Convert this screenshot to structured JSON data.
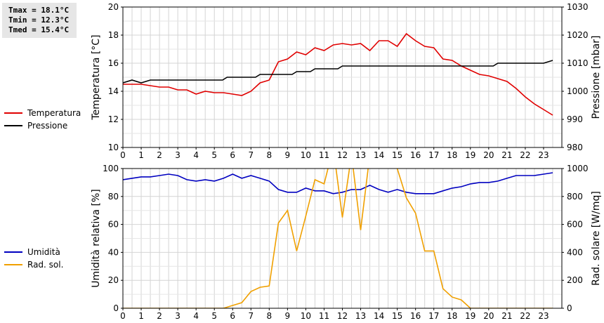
{
  "stats": {
    "tmax": "Tmax = 18.1°C",
    "tmin": "Tmin = 12.3°C",
    "tmed": "Tmed = 15.4°C"
  },
  "legend_top": [
    {
      "label": "Temperatura",
      "color": "#e00000"
    },
    {
      "label": "Pressione",
      "color": "#000000"
    }
  ],
  "legend_bottom": [
    {
      "label": "Umidità",
      "color": "#0000c0"
    },
    {
      "label": "Rad. sol.",
      "color": "#f0a000"
    }
  ],
  "chart_data": [
    {
      "type": "line",
      "xlim": [
        0,
        24
      ],
      "xticks": [
        0,
        1,
        2,
        3,
        4,
        5,
        6,
        7,
        8,
        9,
        10,
        11,
        12,
        13,
        14,
        15,
        16,
        17,
        18,
        19,
        20,
        21,
        22,
        23
      ],
      "ylabel": "Temperatura [°C]",
      "ylim": [
        10,
        20
      ],
      "yticks": [
        10,
        12,
        14,
        16,
        18,
        20
      ],
      "y2label": "Pressione [mbar]",
      "y2lim": [
        980,
        1030
      ],
      "y2ticks": [
        980,
        990,
        1000,
        1010,
        1020,
        1030
      ],
      "grid": true,
      "series": [
        {
          "name": "Temperatura",
          "color": "#e00000",
          "axis": "left",
          "x": [
            0,
            0.5,
            1,
            1.5,
            2,
            2.5,
            3,
            3.5,
            4,
            4.5,
            5,
            5.5,
            6,
            6.5,
            7,
            7.5,
            8,
            8.5,
            9,
            9.5,
            10,
            10.5,
            11,
            11.5,
            12,
            12.5,
            13,
            13.5,
            14,
            14.5,
            15,
            15.5,
            16,
            16.5,
            17,
            17.5,
            18,
            18.5,
            19,
            19.5,
            20,
            20.5,
            21,
            21.5,
            22,
            22.5,
            23,
            23.5
          ],
          "y": [
            14.5,
            14.5,
            14.5,
            14.4,
            14.3,
            14.3,
            14.1,
            14.1,
            13.8,
            14.0,
            13.9,
            13.9,
            13.8,
            13.7,
            14.0,
            14.6,
            14.8,
            16.1,
            16.3,
            16.8,
            16.6,
            17.1,
            16.9,
            17.3,
            17.4,
            17.3,
            17.4,
            16.9,
            17.6,
            17.6,
            17.2,
            18.1,
            17.6,
            17.2,
            17.1,
            16.3,
            16.2,
            15.8,
            15.5,
            15.2,
            15.1,
            14.9,
            14.7,
            14.2,
            13.6,
            13.1,
            12.7,
            12.3
          ]
        },
        {
          "name": "Pressione",
          "color": "#000000",
          "axis": "right",
          "x": [
            0,
            0.5,
            1,
            1.5,
            23,
            23.5
          ],
          "y": [
            1003.0,
            1004.0,
            1003.0,
            1004.0,
            1010.0,
            1011.0
          ],
          "steps": [
            [
              1.5,
              1004.0
            ],
            [
              5.7,
              1005.0
            ],
            [
              7.5,
              1006.0
            ],
            [
              9.5,
              1007.0
            ],
            [
              10.5,
              1008.0
            ],
            [
              12,
              1009.0
            ],
            [
              20.5,
              1010.0
            ]
          ]
        }
      ]
    },
    {
      "type": "line",
      "xlim": [
        0,
        24
      ],
      "xticks": [
        0,
        1,
        2,
        3,
        4,
        5,
        6,
        7,
        8,
        9,
        10,
        11,
        12,
        13,
        14,
        15,
        16,
        17,
        18,
        19,
        20,
        21,
        22,
        23
      ],
      "ylabel": "Umidità relativa [%]",
      "ylim": [
        0,
        100
      ],
      "yticks": [
        0,
        20,
        40,
        60,
        80,
        100
      ],
      "y2label": "Rad. solare [W/mq]",
      "y2lim": [
        0,
        1000
      ],
      "y2ticks": [
        0,
        200,
        400,
        600,
        800,
        1000
      ],
      "grid": true,
      "series": [
        {
          "name": "Umidità",
          "color": "#0000c0",
          "axis": "left",
          "x": [
            0,
            0.5,
            1,
            1.5,
            2,
            2.5,
            3,
            3.5,
            4,
            4.5,
            5,
            5.5,
            6,
            6.5,
            7,
            7.5,
            8,
            8.5,
            9,
            9.5,
            10,
            10.5,
            11,
            11.5,
            12,
            12.5,
            13,
            13.5,
            14,
            14.5,
            15,
            15.5,
            16,
            16.5,
            17,
            17.5,
            18,
            18.5,
            19,
            19.5,
            20,
            20.5,
            21,
            21.5,
            22,
            22.5,
            23,
            23.5
          ],
          "y": [
            92,
            93,
            94,
            94,
            95,
            96,
            95,
            92,
            91,
            92,
            91,
            93,
            96,
            93,
            95,
            93,
            91,
            85,
            83,
            83,
            86,
            84,
            84,
            82,
            83,
            85,
            85,
            88,
            85,
            83,
            85,
            83,
            82,
            82,
            82,
            84,
            86,
            87,
            89,
            90,
            90,
            91,
            93,
            95,
            95,
            95,
            96,
            97
          ]
        },
        {
          "name": "Rad. sol.",
          "color": "#f0a000",
          "axis": "right",
          "x": [
            0,
            0.5,
            1,
            1.5,
            2,
            2.5,
            3,
            3.5,
            4,
            4.5,
            5,
            5.5,
            6,
            6.5,
            7,
            7.5,
            8,
            8.5,
            9,
            9.5,
            10,
            10.5,
            11,
            11.5,
            12,
            12.5,
            13,
            13.5,
            14,
            14.5,
            15,
            15.5,
            16,
            16.5,
            17,
            17.5,
            18,
            18.5,
            19,
            19.5,
            20,
            20.5,
            21,
            21.5,
            22,
            22.5,
            23,
            23.5
          ],
          "y": [
            0,
            0,
            0,
            0,
            0,
            0,
            0,
            0,
            0,
            0,
            0,
            0,
            20,
            40,
            120,
            150,
            160,
            610,
            700,
            410,
            660,
            920,
            890,
            1150,
            650,
            1100,
            560,
            1100,
            1150,
            1050,
            1000,
            790,
            680,
            410,
            410,
            140,
            80,
            60,
            0,
            0,
            0,
            0,
            0,
            0,
            0,
            0,
            0,
            0
          ]
        }
      ]
    }
  ]
}
